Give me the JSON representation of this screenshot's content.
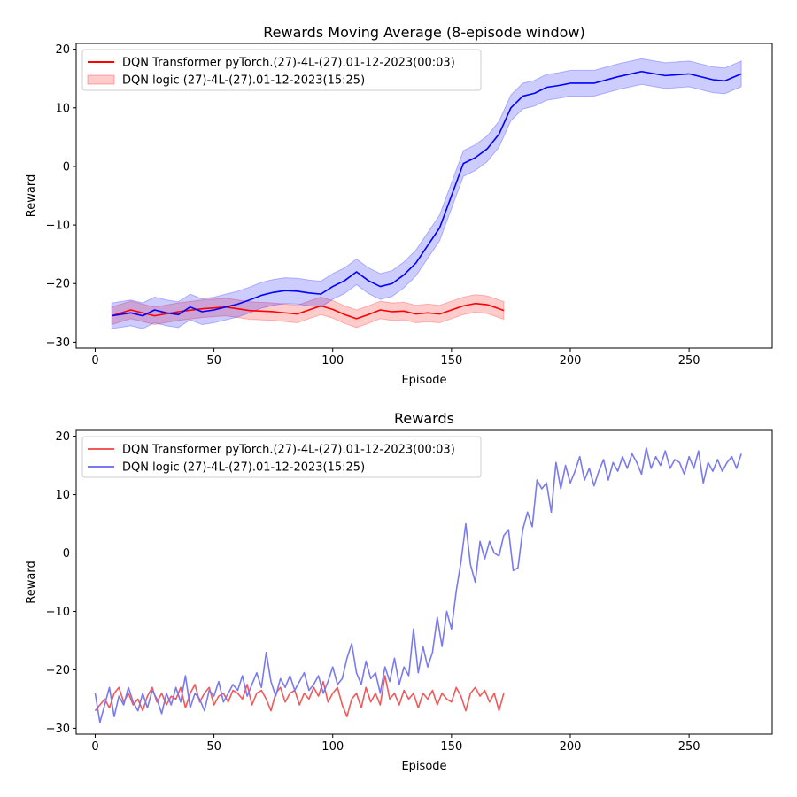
{
  "chart_data": [
    {
      "type": "line",
      "title": "Rewards Moving Average (8-episode window)",
      "xlabel": "Episode",
      "ylabel": "Reward",
      "xlim": [
        -8,
        285
      ],
      "ylim": [
        -31,
        21
      ],
      "xticks": [
        0,
        50,
        100,
        150,
        200,
        250
      ],
      "yticks": [
        -30,
        -20,
        -10,
        0,
        10,
        20
      ],
      "grid": false,
      "legend": "top-left",
      "legend_entries": [
        {
          "label": "DQN Transformer pyTorch.(27)-4L-(27).01-12-2023(00:03)",
          "kind": "line",
          "color": "#ff0000"
        },
        {
          "label": "DQN logic (27)-4L-(27).01-12-2023(15:25)",
          "kind": "patch",
          "color": "#ff0000"
        }
      ],
      "series": [
        {
          "color": "#ff0000",
          "band_color": "#ff0000",
          "x": [
            7,
            15,
            25,
            35,
            45,
            55,
            65,
            75,
            85,
            95,
            100,
            105,
            110,
            115,
            120,
            125,
            130,
            135,
            140,
            145,
            150,
            155,
            160,
            165,
            170,
            172
          ],
          "y": [
            -25.5,
            -24.5,
            -25.5,
            -24.8,
            -24.3,
            -24.0,
            -24.6,
            -24.8,
            -25.2,
            -23.8,
            -24.4,
            -25.3,
            -26.0,
            -25.3,
            -24.5,
            -24.8,
            -24.7,
            -25.2,
            -25.0,
            -25.2,
            -24.5,
            -23.8,
            -23.4,
            -23.6,
            -24.3,
            -24.6
          ],
          "band": 1.5
        },
        {
          "color": "#0000ff",
          "band_color": "#0000ff",
          "x": [
            7,
            15,
            20,
            25,
            30,
            35,
            40,
            45,
            50,
            55,
            60,
            65,
            70,
            75,
            80,
            85,
            90,
            95,
            100,
            105,
            110,
            115,
            120,
            125,
            130,
            135,
            140,
            145,
            150,
            155,
            160,
            165,
            170,
            175,
            180,
            185,
            190,
            195,
            200,
            210,
            220,
            230,
            240,
            250,
            260,
            265,
            272
          ],
          "y": [
            -25.5,
            -25.0,
            -25.5,
            -24.5,
            -25.0,
            -25.3,
            -24.0,
            -24.8,
            -24.5,
            -24.0,
            -23.5,
            -22.8,
            -22.0,
            -21.5,
            -21.2,
            -21.3,
            -21.6,
            -21.8,
            -20.5,
            -19.5,
            -18.0,
            -19.5,
            -20.5,
            -20.0,
            -18.5,
            -16.5,
            -13.5,
            -10.5,
            -5.0,
            0.5,
            1.5,
            3.0,
            5.5,
            10.0,
            12.0,
            12.5,
            13.5,
            13.8,
            14.2,
            14.2,
            15.3,
            16.2,
            15.5,
            15.8,
            14.8,
            14.6,
            15.8
          ],
          "band": 2.2
        }
      ]
    },
    {
      "type": "line",
      "title": "Rewards",
      "xlabel": "Episode",
      "ylabel": "Reward",
      "xlim": [
        -8,
        285
      ],
      "ylim": [
        -31,
        21
      ],
      "xticks": [
        0,
        50,
        100,
        150,
        200,
        250
      ],
      "yticks": [
        -30,
        -20,
        -10,
        0,
        10,
        20
      ],
      "grid": false,
      "legend": "top-left",
      "legend_entries": [
        {
          "label": "DQN Transformer pyTorch.(27)-4L-(27).01-12-2023(00:03)",
          "kind": "line",
          "color": "#f05a5a"
        },
        {
          "label": "DQN logic (27)-4L-(27).01-12-2023(15:25)",
          "kind": "line",
          "color": "#7a7af0"
        }
      ],
      "series": [
        {
          "name": "DQN Transformer pyTorch.(27)-4L-(27).01-12-2023(00:03)",
          "color": "#f05a5a",
          "x": [
            0,
            2,
            4,
            6,
            8,
            10,
            12,
            14,
            16,
            18,
            20,
            22,
            24,
            26,
            28,
            30,
            32,
            34,
            36,
            38,
            40,
            42,
            44,
            46,
            48,
            50,
            52,
            54,
            56,
            58,
            60,
            62,
            64,
            66,
            68,
            70,
            72,
            74,
            76,
            78,
            80,
            82,
            84,
            86,
            88,
            90,
            92,
            94,
            96,
            98,
            100,
            102,
            104,
            106,
            108,
            110,
            112,
            114,
            116,
            118,
            120,
            122,
            124,
            126,
            128,
            130,
            132,
            134,
            136,
            138,
            140,
            142,
            144,
            146,
            148,
            150,
            152,
            154,
            156,
            158,
            160,
            162,
            164,
            166,
            168,
            170,
            172
          ],
          "y": [
            -27,
            -26,
            -25,
            -26.5,
            -24,
            -23,
            -25.5,
            -24,
            -26,
            -25,
            -27,
            -24.5,
            -23,
            -25.5,
            -24,
            -26,
            -24.5,
            -25,
            -23,
            -26.5,
            -24,
            -22.5,
            -25.5,
            -24,
            -23,
            -26,
            -24.5,
            -24,
            -25.5,
            -23.5,
            -24,
            -25,
            -22.5,
            -26,
            -24,
            -23.5,
            -25,
            -27,
            -24,
            -23,
            -25.5,
            -24,
            -23.5,
            -26,
            -24,
            -25,
            -23,
            -24.5,
            -22,
            -25.5,
            -24,
            -23,
            -26,
            -28,
            -25,
            -24,
            -26.5,
            -23,
            -25.5,
            -24,
            -26,
            -21,
            -25,
            -24,
            -26,
            -23.5,
            -25,
            -24,
            -26.5,
            -24,
            -25,
            -23.5,
            -26,
            -24,
            -25,
            -25.5,
            -23,
            -24.5,
            -27,
            -24,
            -23,
            -24.5,
            -23.5,
            -25.5,
            -24,
            -27,
            -24
          ]
        },
        {
          "name": "DQN logic (27)-4L-(27).01-12-2023(15:25)",
          "color": "#7a7af0",
          "x": [
            0,
            2,
            4,
            6,
            8,
            10,
            12,
            14,
            16,
            18,
            20,
            22,
            24,
            26,
            28,
            30,
            32,
            34,
            36,
            38,
            40,
            42,
            44,
            46,
            48,
            50,
            52,
            54,
            56,
            58,
            60,
            62,
            64,
            66,
            68,
            70,
            72,
            74,
            76,
            78,
            80,
            82,
            84,
            86,
            88,
            90,
            92,
            94,
            96,
            98,
            100,
            102,
            104,
            106,
            108,
            110,
            112,
            114,
            116,
            118,
            120,
            122,
            124,
            126,
            128,
            130,
            132,
            134,
            136,
            138,
            140,
            142,
            144,
            146,
            148,
            150,
            152,
            154,
            156,
            158,
            160,
            162,
            164,
            166,
            168,
            170,
            172,
            174,
            176,
            178,
            180,
            182,
            184,
            186,
            188,
            190,
            192,
            194,
            196,
            198,
            200,
            202,
            204,
            206,
            208,
            210,
            212,
            214,
            216,
            218,
            220,
            222,
            224,
            226,
            228,
            230,
            232,
            234,
            236,
            238,
            240,
            242,
            244,
            246,
            248,
            250,
            252,
            254,
            256,
            258,
            260,
            262,
            264,
            266,
            268,
            270,
            272
          ],
          "y": [
            -24,
            -29,
            -26,
            -23,
            -28,
            -24.5,
            -26,
            -23,
            -25.5,
            -27,
            -24,
            -26.5,
            -23.5,
            -25,
            -27.5,
            -24,
            -26,
            -23,
            -25.5,
            -21,
            -26.5,
            -24,
            -25,
            -27,
            -23.5,
            -24.5,
            -22,
            -25.5,
            -24,
            -22.5,
            -23.5,
            -21,
            -24.5,
            -22.5,
            -20.5,
            -23,
            -17,
            -22,
            -24.5,
            -21.5,
            -23,
            -21,
            -23.5,
            -22,
            -20.5,
            -23.5,
            -22.5,
            -21,
            -24,
            -22,
            -19.5,
            -22.5,
            -21.5,
            -18,
            -15.5,
            -20.5,
            -22.5,
            -18.5,
            -21.5,
            -20.5,
            -24,
            -19.5,
            -22,
            -18,
            -22.5,
            -19.5,
            -21,
            -13,
            -20.5,
            -16,
            -19.5,
            -17,
            -11,
            -16,
            -10,
            -13,
            -6.5,
            -1.5,
            5,
            -2,
            -5,
            2,
            -1,
            2,
            0,
            -0.5,
            3,
            4,
            -3,
            -2.5,
            4,
            7,
            4.5,
            12.5,
            11,
            12,
            7,
            15.5,
            11,
            15,
            12,
            14,
            16.5,
            12.5,
            14.5,
            11.5,
            14,
            16,
            12.5,
            15.5,
            14,
            16.5,
            14.5,
            17,
            15.5,
            13.5,
            18,
            14.5,
            16.5,
            15,
            17.5,
            14.5,
            16,
            15.5,
            13.5,
            16.5,
            14.5,
            17.5,
            12,
            15.5,
            14,
            16,
            14,
            15.5,
            16.5,
            14.5,
            17
          ]
        }
      ]
    }
  ]
}
